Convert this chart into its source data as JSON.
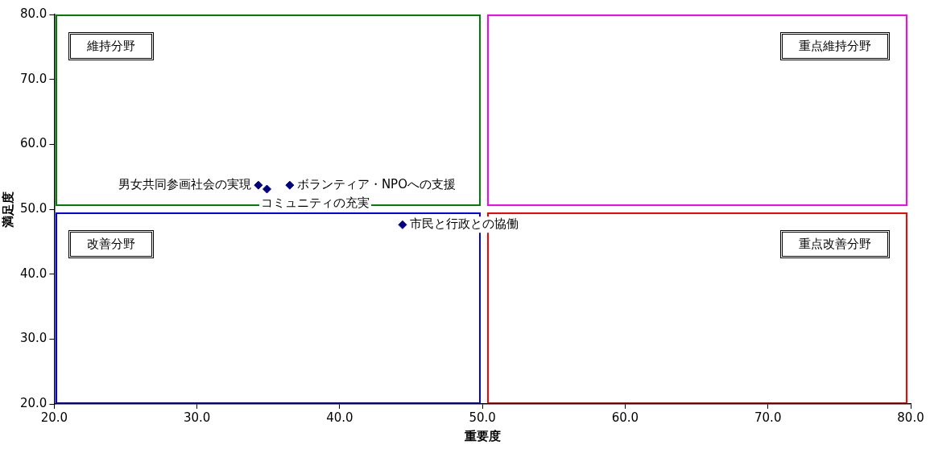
{
  "chart_data": {
    "type": "scatter",
    "xlabel": "重要度",
    "ylabel": "満足度",
    "series": [
      {
        "name": "男女共同参画社会の実現",
        "color": "#000080",
        "x": [
          34.3
        ],
        "values": [
          53.7
        ]
      },
      {
        "name": "コミュニティの充実",
        "color": "#000080",
        "x": [
          34.9
        ],
        "values": [
          53.1
        ]
      },
      {
        "name": "ボランティア・NPOへの支援",
        "color": "#000080",
        "x": [
          36.5
        ],
        "values": [
          53.7
        ]
      },
      {
        "name": "市民と行政との協働",
        "color": "#000080",
        "x": [
          44.4
        ],
        "values": [
          47.6
        ]
      }
    ],
    "xlim": [
      20,
      80
    ],
    "ylim": [
      20,
      80
    ],
    "xticks": [
      {
        "value": 20,
        "label": "20.0"
      },
      {
        "value": 30,
        "label": "30.0"
      },
      {
        "value": 40,
        "label": "40.0"
      },
      {
        "value": 50,
        "label": "50.0"
      },
      {
        "value": 60,
        "label": "60.0"
      },
      {
        "value": 70,
        "label": "70.0"
      },
      {
        "value": 80,
        "label": "80.0"
      }
    ],
    "yticks": [
      {
        "value": 20,
        "label": "20.0"
      },
      {
        "value": 30,
        "label": "30.0"
      },
      {
        "value": 40,
        "label": "40.0"
      },
      {
        "value": 50,
        "label": "50.0"
      },
      {
        "value": 60,
        "label": "60.0"
      },
      {
        "value": 70,
        "label": "70.0"
      },
      {
        "value": 80,
        "label": "80.0"
      }
    ],
    "annotations": [
      "維持分野",
      "重点維持分野",
      "改善分野",
      "重点改善分野"
    ],
    "marker": "diamond",
    "grid": false,
    "legend": false
  }
}
